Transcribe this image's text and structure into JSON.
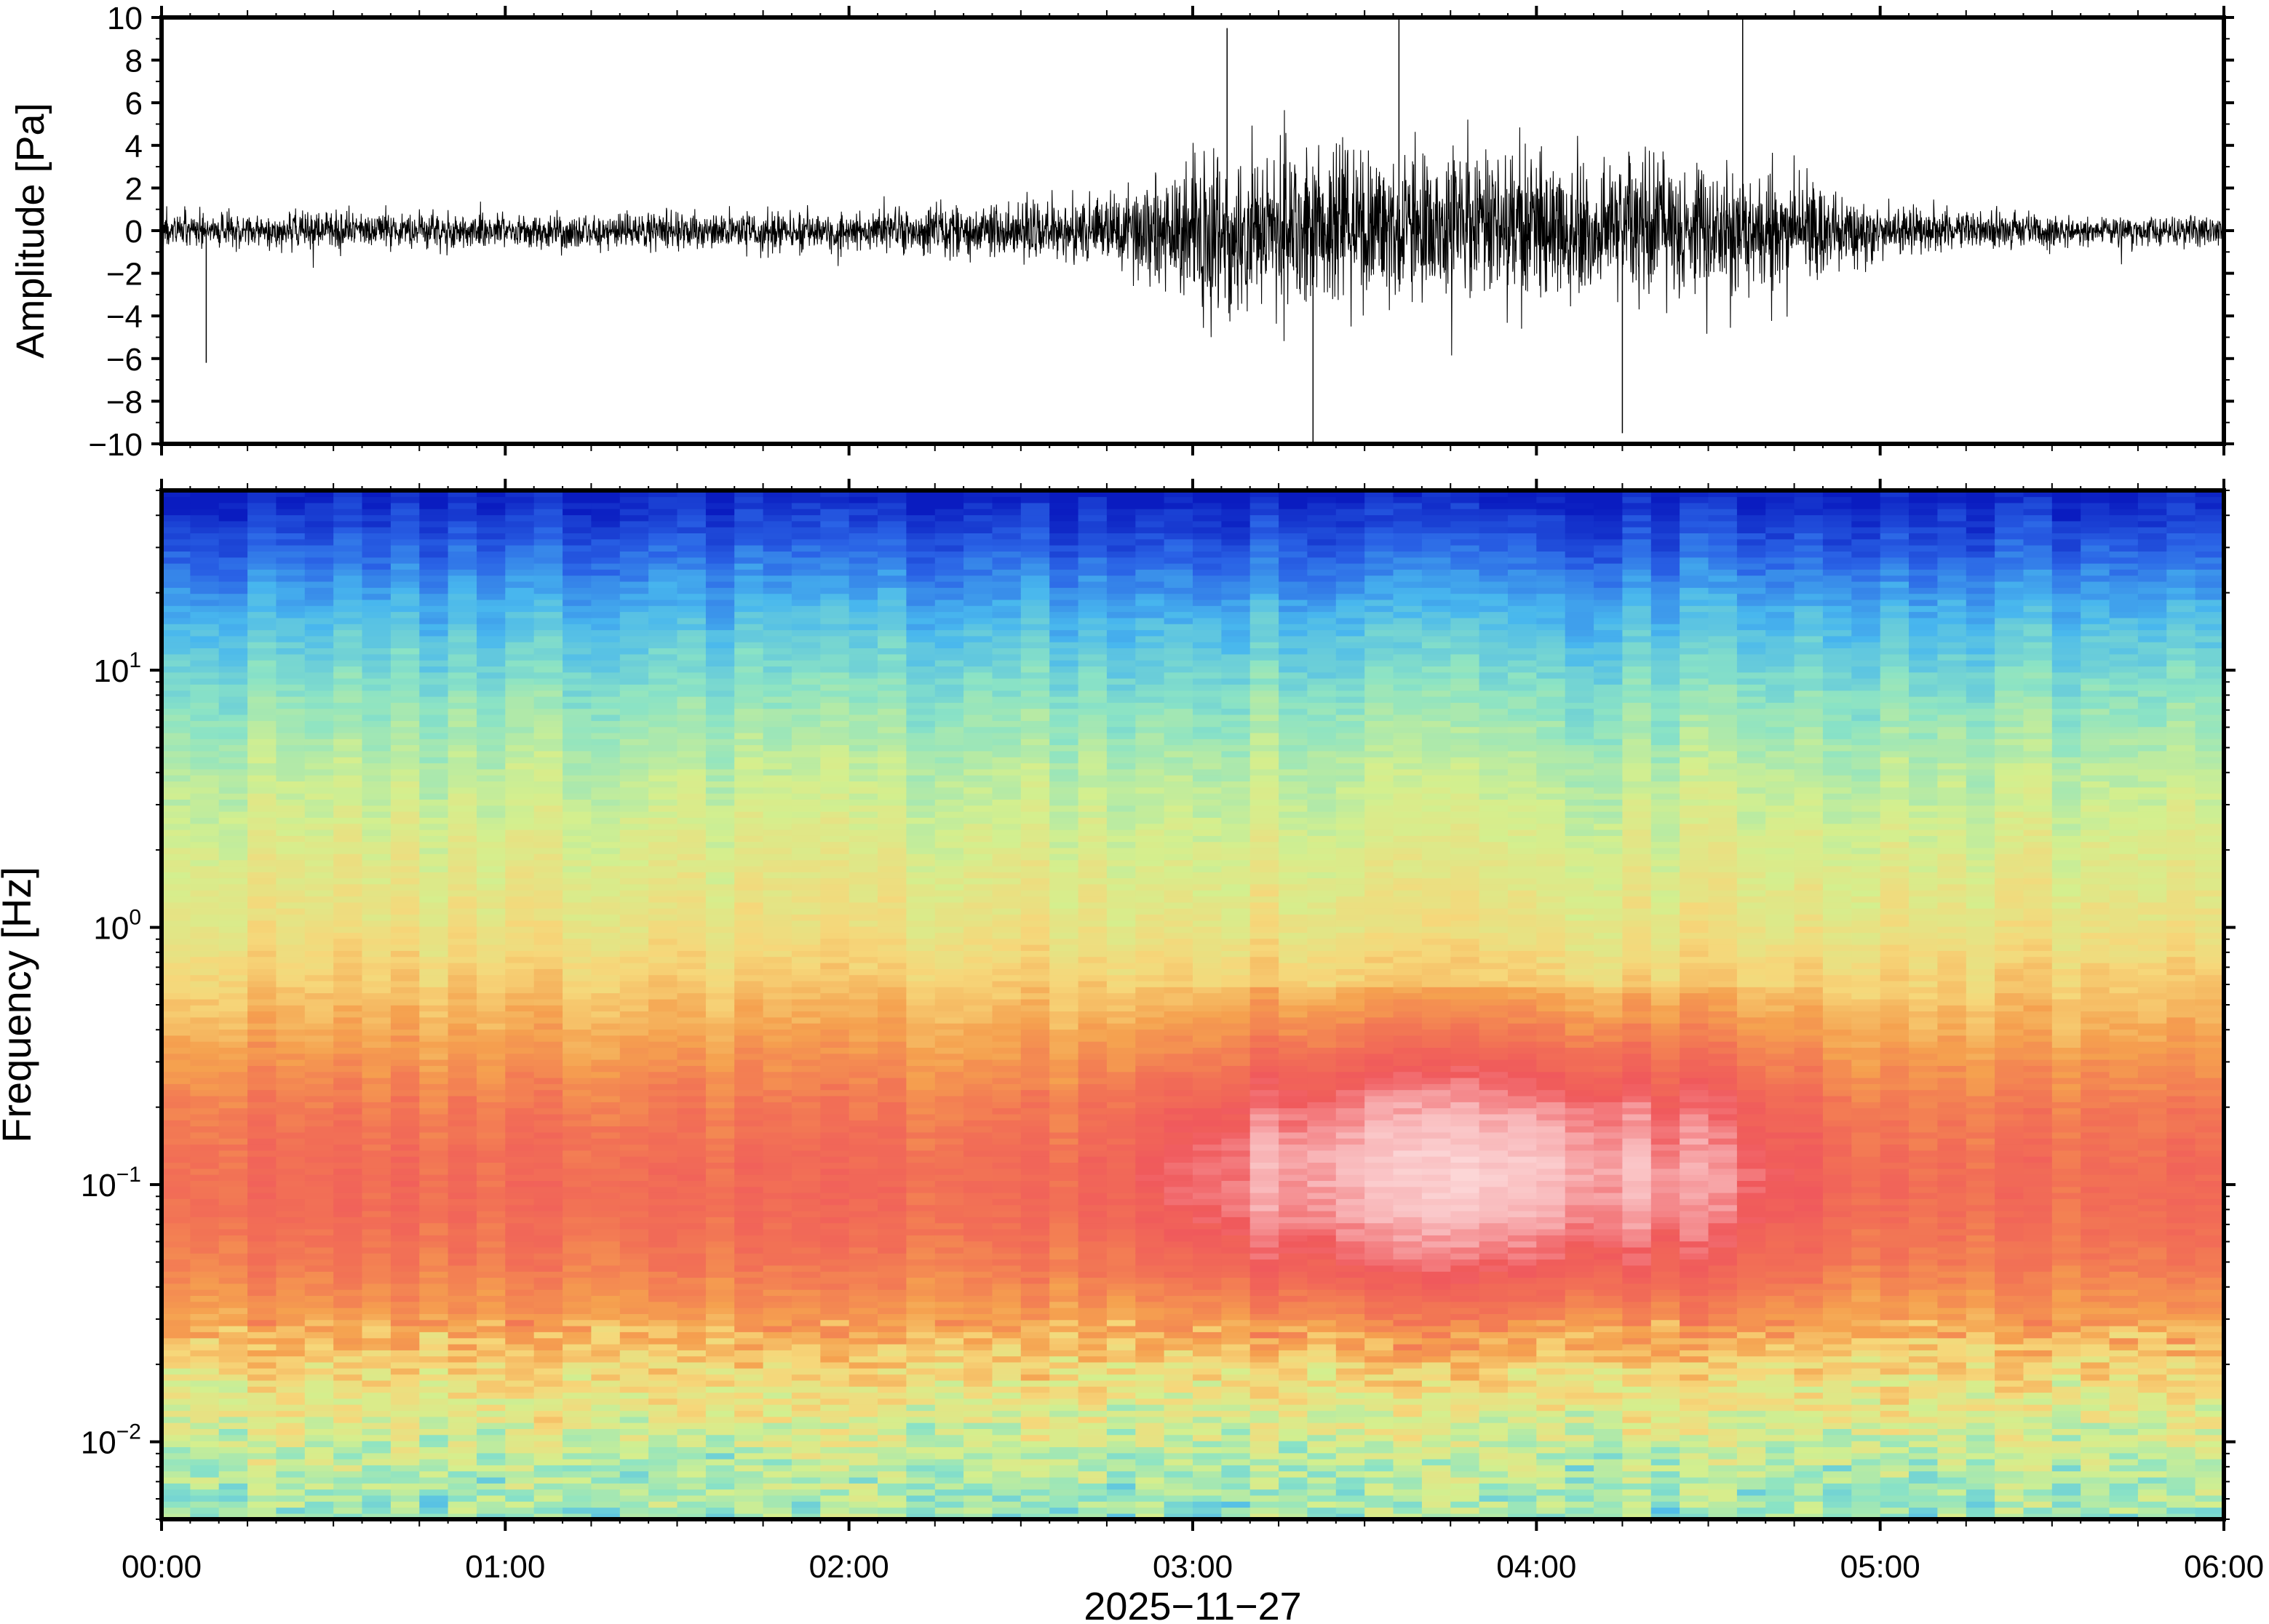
{
  "chart_data": [
    {
      "type": "line",
      "panel": "waveform",
      "ylabel": "Amplitude [Pa]",
      "ylim": [
        -10,
        10
      ],
      "y_ticks": [
        -10,
        -8,
        -6,
        -4,
        -2,
        0,
        2,
        4,
        6,
        8,
        10
      ],
      "y_tick_labels": [
        "−10",
        "−8",
        "−6",
        "−4",
        "−2",
        "0",
        "2",
        "4",
        "6",
        "8",
        "10"
      ],
      "xlim_hours": [
        0,
        6
      ],
      "color": "#000000",
      "envelope": {
        "x_hours": [
          0,
          0.5,
          1.0,
          1.5,
          2.0,
          2.5,
          2.75,
          3.0,
          3.25,
          3.5,
          3.75,
          4.0,
          4.25,
          4.5,
          4.75,
          5.0,
          5.25,
          5.5,
          6.0
        ],
        "amplitude_pa": [
          1.2,
          1.3,
          1.2,
          1.3,
          1.4,
          2.0,
          2.5,
          5.0,
          5.5,
          5.5,
          5.2,
          5.0,
          4.8,
          4.6,
          4.0,
          1.8,
          1.3,
          1.1,
          1.0
        ]
      },
      "peaks": [
        {
          "x_hours": 3.35,
          "y": -10
        },
        {
          "x_hours": 3.1,
          "y": 9.5
        },
        {
          "x_hours": 3.6,
          "y": 10
        },
        {
          "x_hours": 4.6,
          "y": 10
        },
        {
          "x_hours": 4.25,
          "y": -9.5
        },
        {
          "x_hours": 0.13,
          "y": -6.2
        }
      ]
    },
    {
      "type": "heatmap",
      "panel": "spectrogram",
      "ylabel": "Frequency [Hz]",
      "yscale": "log",
      "ylim_hz": [
        0.005,
        50
      ],
      "y_ticks": [
        {
          "value": 0.01,
          "base": "10",
          "exp": "−2"
        },
        {
          "value": 0.1,
          "base": "10",
          "exp": "−1"
        },
        {
          "value": 1,
          "base": "10",
          "exp": "0"
        },
        {
          "value": 10,
          "base": "10",
          "exp": "1"
        }
      ],
      "xlim_hours": [
        0,
        6
      ],
      "colormap": [
        "#0a1cc0",
        "#2a63e6",
        "#48b7ee",
        "#8be3c5",
        "#d4ef8e",
        "#f6d77a",
        "#f5a14f",
        "#f27255",
        "#f0595c",
        "#f8b4b6",
        "#fde2e2"
      ],
      "relative_power_profile": {
        "frequency_hz": [
          0.005,
          0.008,
          0.012,
          0.02,
          0.03,
          0.05,
          0.08,
          0.12,
          0.2,
          0.35,
          0.6,
          1.0,
          2.0,
          4.0,
          8.0,
          15.0,
          25.0,
          40.0,
          50.0
        ],
        "level": [
          0.32,
          0.36,
          0.42,
          0.5,
          0.6,
          0.68,
          0.72,
          0.72,
          0.68,
          0.6,
          0.52,
          0.46,
          0.42,
          0.37,
          0.3,
          0.22,
          0.13,
          0.04,
          0.0
        ]
      },
      "event_window_hours": [
        2.6,
        5.0
      ]
    }
  ],
  "x_axis": {
    "tick_labels": [
      "00:00",
      "01:00",
      "02:00",
      "03:00",
      "04:00",
      "05:00",
      "06:00"
    ],
    "xlabel": "2025−11−27"
  }
}
